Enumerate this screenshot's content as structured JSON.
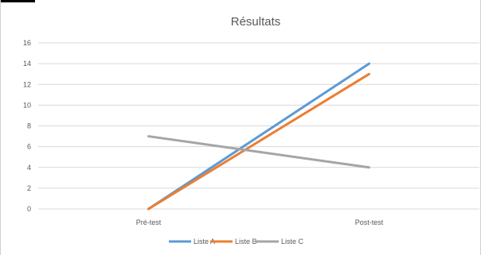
{
  "chart_data": {
    "type": "line",
    "title": "Résultats",
    "categories": [
      "Pré-test",
      "Post-test"
    ],
    "ylim": [
      0,
      16
    ],
    "yticks": [
      0,
      2,
      4,
      6,
      8,
      10,
      12,
      14,
      16
    ],
    "grid": true,
    "legend_position": "bottom",
    "series": [
      {
        "name": "Liste A",
        "values": [
          0,
          14
        ],
        "color": "#5B9BD5"
      },
      {
        "name": "Liste B",
        "values": [
          0,
          13
        ],
        "color": "#ED7D31"
      },
      {
        "name": "Liste C",
        "values": [
          7,
          4
        ],
        "color": "#A5A5A5"
      }
    ]
  }
}
